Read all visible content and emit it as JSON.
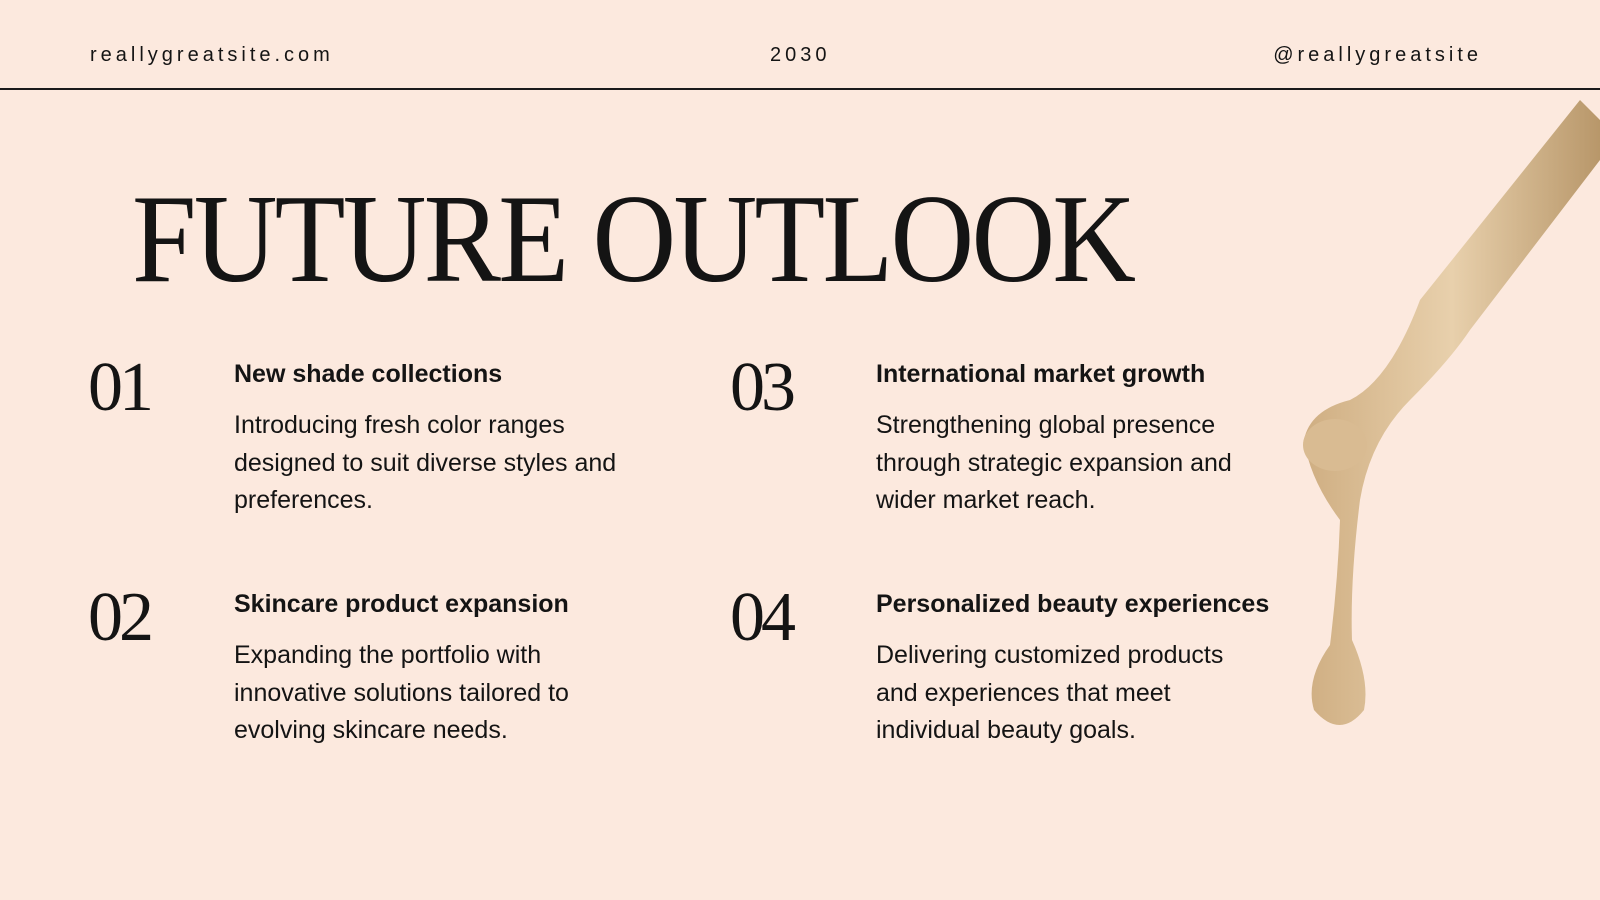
{
  "header": {
    "left": "reallygreatsite.com",
    "center": "2030",
    "right": "@reallygreatsite"
  },
  "title": "FUTURE OUTLOOK",
  "items": [
    {
      "number": "01",
      "heading": "New shade collections",
      "lines": [
        "Introducing fresh color ranges",
        "designed to suit diverse styles and",
        "preferences."
      ]
    },
    {
      "number": "02",
      "heading": "Skincare product expansion",
      "lines": [
        "Expanding the portfolio with",
        "innovative solutions tailored to",
        "evolving skincare needs."
      ]
    },
    {
      "number": "03",
      "heading": "International market growth",
      "lines": [
        "Strengthening global presence",
        "through strategic expansion and",
        "wider market reach."
      ]
    },
    {
      "number": "04",
      "heading": "Personalized beauty experiences",
      "lines": [
        "Delivering customized products",
        "and experiences that meet",
        "individual beauty goals."
      ]
    }
  ]
}
